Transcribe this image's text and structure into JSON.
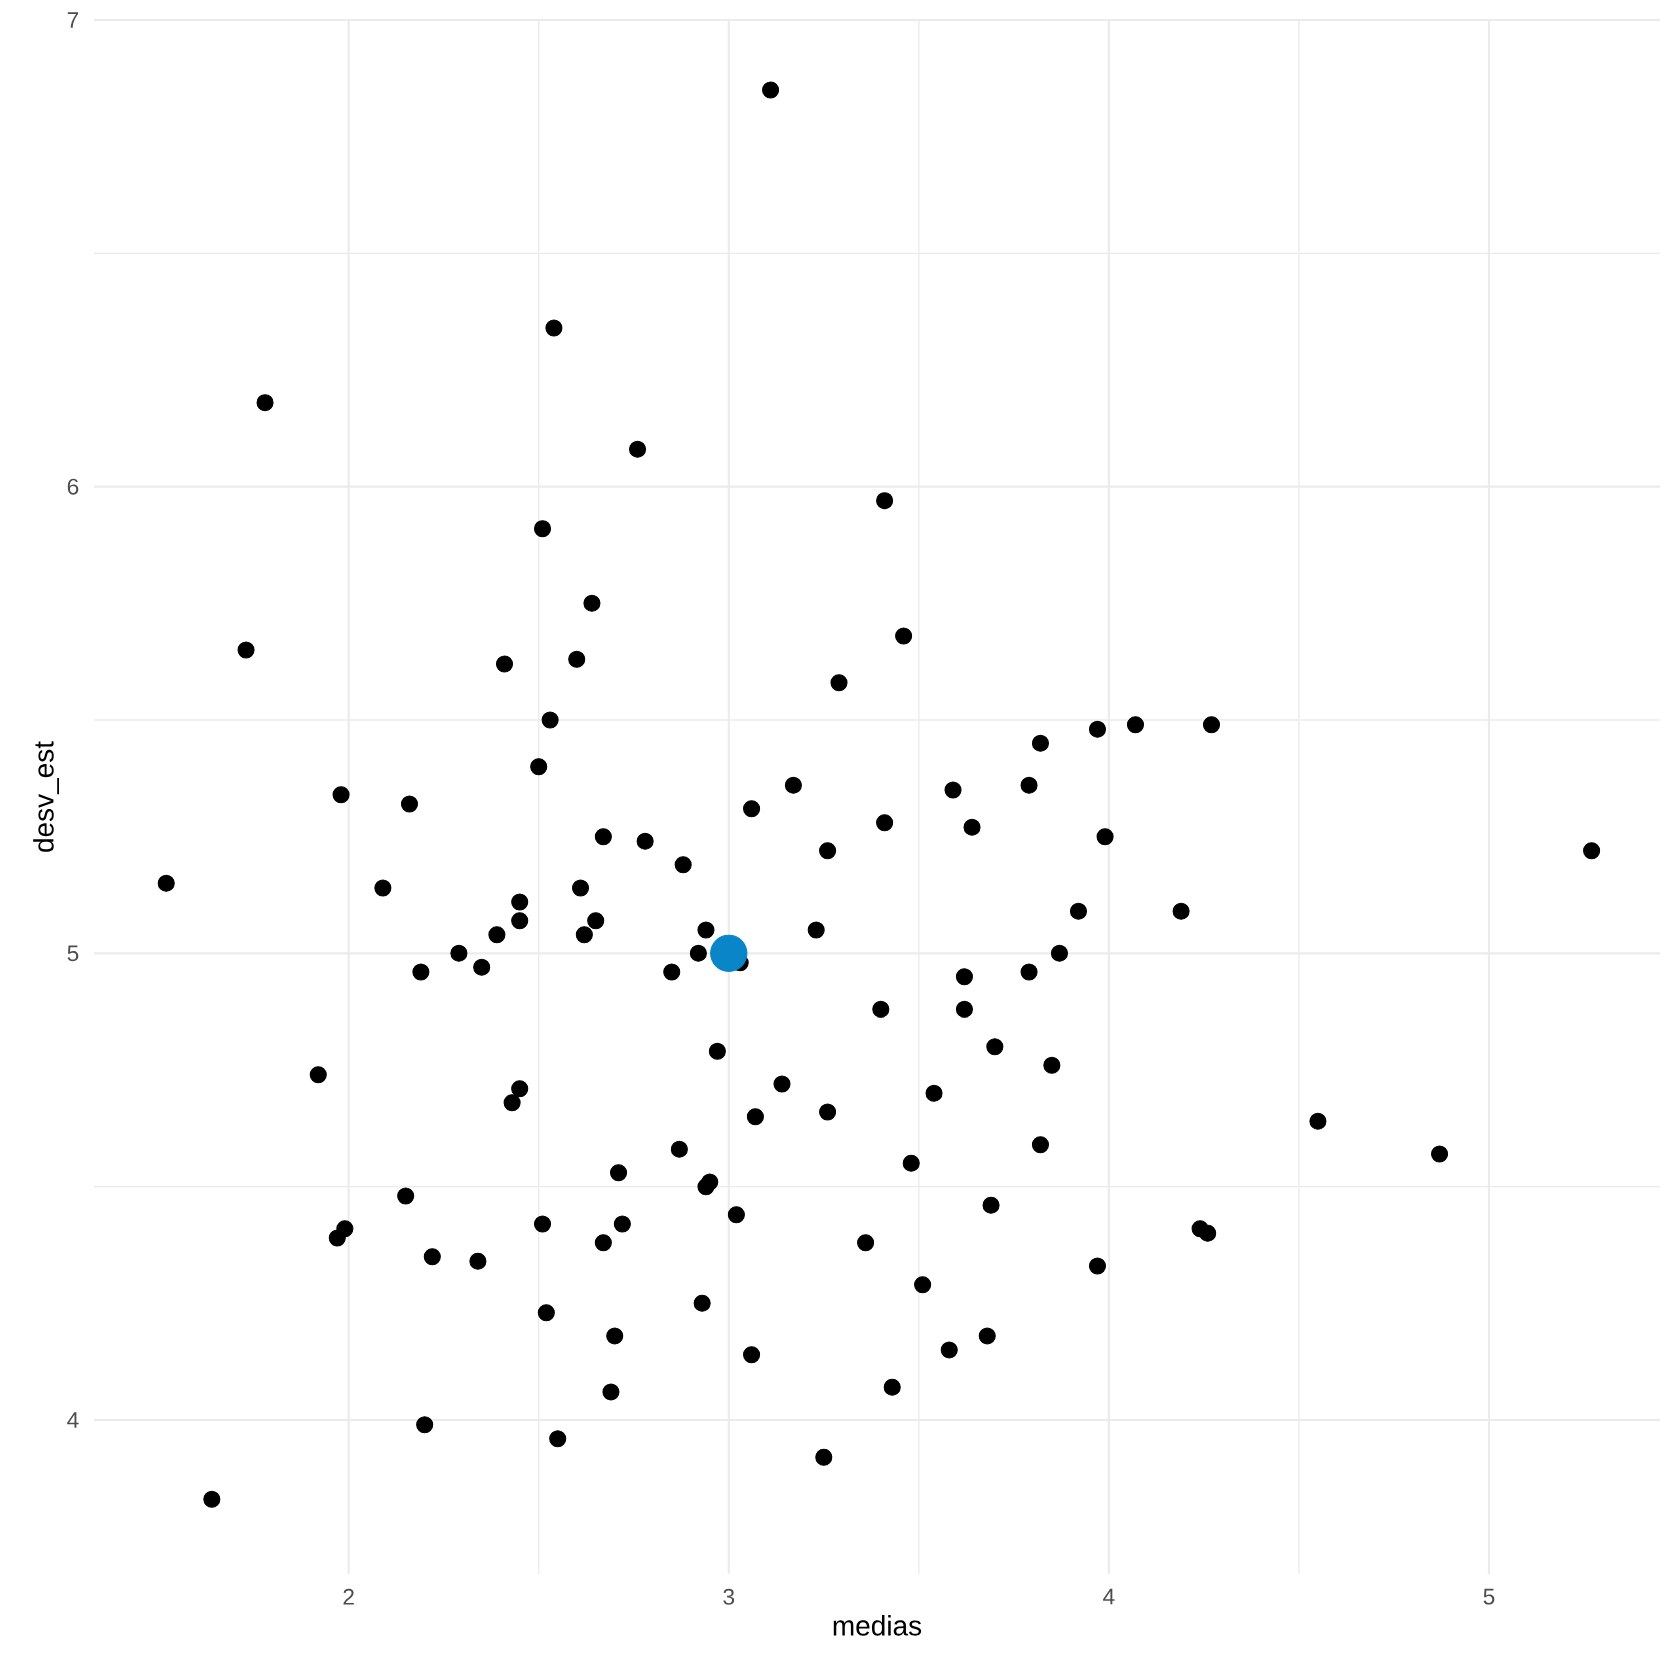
{
  "chart_data": {
    "type": "scatter",
    "xlabel": "medias",
    "ylabel": "desv_est",
    "xlim": [
      1.33,
      5.45
    ],
    "ylim": [
      3.67,
      7.0
    ],
    "xticks": [
      2,
      3,
      4,
      5
    ],
    "yticks": [
      4,
      5,
      6,
      7
    ],
    "grid": true,
    "marker": "circle",
    "series": [
      {
        "color": "#000000",
        "x": [
          3.11,
          2.54,
          1.78,
          2.76,
          3.41,
          2.51,
          2.64,
          3.46,
          1.73,
          2.41,
          2.6,
          3.29,
          2.53,
          3.97,
          4.07,
          4.27,
          3.82,
          2.5,
          1.98,
          3.17,
          3.59,
          3.79,
          2.16,
          3.06,
          3.41,
          3.64,
          3.99,
          2.67,
          2.78,
          3.26,
          5.27,
          2.88,
          1.52,
          2.09,
          2.61,
          2.45,
          2.45,
          2.65,
          3.92,
          4.19,
          2.39,
          2.62,
          2.94,
          3.23,
          2.29,
          2.92,
          3.87,
          2.35,
          3.03,
          2.19,
          2.85,
          3.62,
          3.79,
          3.4,
          3.62,
          2.97,
          3.7,
          3.85,
          1.92,
          3.14,
          2.45,
          3.54,
          2.43,
          3.07,
          3.26,
          4.55,
          2.87,
          3.82,
          4.87,
          3.48,
          2.71,
          2.95,
          2.94,
          2.15,
          3.69,
          3.02,
          2.51,
          2.72,
          4.24,
          4.26,
          1.99,
          1.97,
          2.67,
          3.36,
          2.22,
          2.34,
          3.97,
          3.51,
          2.52,
          2.93,
          2.7,
          3.68,
          3.58,
          3.06,
          3.43,
          2.69,
          2.2,
          2.55,
          3.25,
          1.64
        ],
        "values": [
          6.85,
          6.34,
          6.18,
          6.08,
          5.97,
          5.91,
          5.75,
          5.68,
          5.65,
          5.62,
          5.63,
          5.58,
          5.5,
          5.48,
          5.49,
          5.49,
          5.45,
          5.4,
          5.34,
          5.36,
          5.35,
          5.36,
          5.32,
          5.31,
          5.28,
          5.27,
          5.25,
          5.25,
          5.24,
          5.22,
          5.22,
          5.19,
          5.15,
          5.14,
          5.14,
          5.11,
          5.07,
          5.07,
          5.09,
          5.09,
          5.04,
          5.04,
          5.05,
          5.05,
          5.0,
          5.0,
          5.0,
          4.97,
          4.98,
          4.96,
          4.96,
          4.95,
          4.96,
          4.88,
          4.88,
          4.79,
          4.8,
          4.76,
          4.74,
          4.72,
          4.71,
          4.7,
          4.68,
          4.65,
          4.66,
          4.64,
          4.58,
          4.59,
          4.57,
          4.55,
          4.53,
          4.51,
          4.5,
          4.48,
          4.46,
          4.44,
          4.42,
          4.42,
          4.41,
          4.4,
          4.41,
          4.39,
          4.38,
          4.38,
          4.35,
          4.34,
          4.33,
          4.29,
          4.23,
          4.25,
          4.18,
          4.18,
          4.15,
          4.14,
          4.07,
          4.06,
          3.99,
          3.96,
          3.92,
          3.83
        ]
      },
      {
        "color": "#0a85c8",
        "x": [
          3.0
        ],
        "values": [
          5.0
        ]
      }
    ]
  }
}
